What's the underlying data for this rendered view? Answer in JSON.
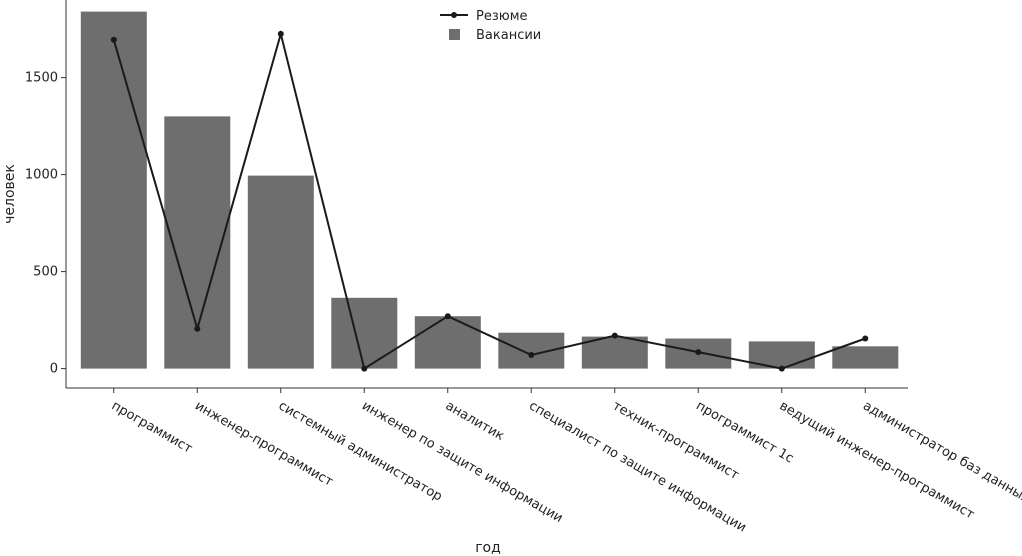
{
  "chart_data": {
    "type": "bar",
    "title": "",
    "xlabel": "год",
    "ylabel": "человек",
    "ylim": [
      -100,
      1900
    ],
    "yticks": [
      0,
      500,
      1000,
      1500
    ],
    "categories": [
      "программист",
      "инженер-программист",
      "системный администратор",
      "инженер по защите информации",
      "аналитик",
      "специалист по защите информации",
      "техник-программист",
      "программист 1с",
      "ведущий инженер-программист",
      "администратор баз данных"
    ],
    "series": [
      {
        "name": "Вакансии",
        "kind": "bar",
        "color": "#6e6e6e",
        "values": [
          1840,
          1300,
          995,
          365,
          270,
          185,
          165,
          155,
          140,
          115
        ]
      },
      {
        "name": "Резюме",
        "kind": "line",
        "color": "#1a1a1a",
        "values": [
          1695,
          205,
          1725,
          0,
          270,
          70,
          170,
          85,
          0,
          155
        ]
      }
    ],
    "grid": false,
    "legend": "top-center"
  }
}
